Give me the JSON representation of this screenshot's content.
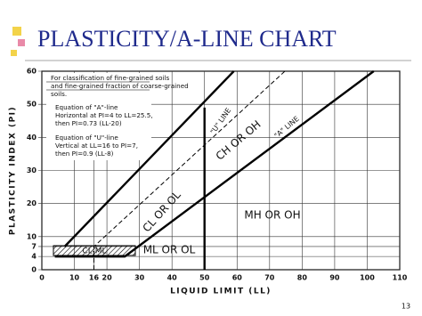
{
  "page_number": "13",
  "chart_data": {
    "type": "line",
    "title": "PLASTICITY/A-LINE CHART",
    "x_label": "LIQUID LIMIT (LL)",
    "y_label": "PLASTICITY INDEX (PI)",
    "xlim": [
      0,
      110
    ],
    "ylim": [
      0,
      60
    ],
    "xticks": [
      0,
      10,
      16,
      20,
      30,
      40,
      50,
      60,
      70,
      80,
      90,
      100,
      110
    ],
    "yticks": [
      0,
      4,
      7,
      10,
      20,
      30,
      40,
      50,
      60
    ],
    "grid": true,
    "series": [
      {
        "color": "#000",
        "dash": false,
        "x": [
          4,
          25.5,
          102
        ],
        "values": [
          4,
          4,
          60
        ]
      },
      {
        "color": "#000",
        "dash": true,
        "x": [
          16,
          16,
          74.7
        ],
        "values": [
          0,
          7,
          60
        ]
      },
      {
        "color": "#000",
        "dash": false,
        "x": [
          7,
          59
        ],
        "values": [
          7,
          60
        ]
      },
      {
        "color": "#000",
        "dash": false,
        "x": [
          50,
          50
        ],
        "values": [
          0,
          49
        ]
      }
    ],
    "notes": [
      "For classification of fine-grained soils",
      "and fine-grained fraction of coarse-grained",
      "soils.",
      "Equation of \"A\"-line",
      "Horizontal at PI=4 to LL=25.5,",
      "then PI=0.73 (LL-20)",
      "Equation of \"U\"-line",
      "Vertical at LL=16 to PI=7,",
      "then PI=0.9 (LL-8)"
    ],
    "zones": [
      "CL OR OL",
      "CH OR OH",
      "ML OR OL",
      "MH OR OH",
      "CL-ML",
      "\"U\" LINE",
      "\"A\" LINE"
    ]
  }
}
